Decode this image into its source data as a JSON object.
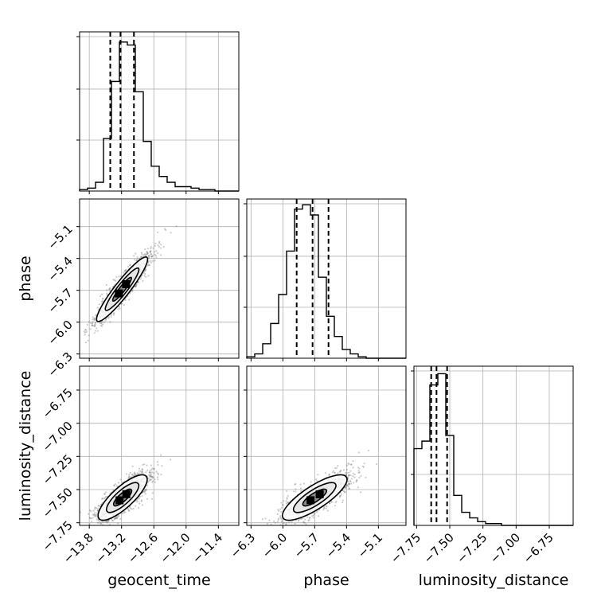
{
  "chart_data": {
    "type": "corner",
    "parameters": [
      "geocent_time",
      "phase",
      "luminosity_distance"
    ],
    "ranges": {
      "geocent_time": [
        -13.98,
        -11.02
      ],
      "phase": [
        -6.34,
        -4.84
      ],
      "luminosity_distance": [
        -7.77,
        -6.57
      ]
    },
    "ticks": {
      "geocent_time": [
        -13.8,
        -13.2,
        -12.6,
        -12.0,
        -11.4
      ],
      "phase": [
        -6.3,
        -6.0,
        -5.7,
        -5.4,
        -5.1
      ],
      "luminosity_distance": [
        -7.75,
        -7.5,
        -7.25,
        -7.0,
        -6.75
      ]
    },
    "tick_labels": {
      "geocent_time": [
        "−13.8",
        "−13.2",
        "−12.6",
        "−12.0",
        "−11.4"
      ],
      "phase": [
        "−6.3",
        "−6.0",
        "−5.7",
        "−5.4",
        "−5.1"
      ],
      "luminosity_distance": [
        "−7.75",
        "−7.50",
        "−7.25",
        "−7.00",
        "−6.75"
      ]
    },
    "axis_labels": {
      "x": [
        "geocent_time",
        "phase",
        "luminosity_distance"
      ],
      "y": [
        "",
        "phase",
        "luminosity_distance"
      ]
    },
    "quantiles": {
      "geocent_time": [
        -13.41,
        -13.22,
        -12.97
      ],
      "phase": [
        -5.87,
        -5.72,
        -5.57
      ],
      "luminosity_distance": [
        -7.64,
        -7.6,
        -7.52
      ]
    },
    "histograms": {
      "geocent_time": {
        "bin_start": -13.98,
        "bin_width": 0.148,
        "counts": [
          1,
          2,
          6,
          36,
          75,
          102,
          100,
          68,
          34,
          17,
          10,
          6,
          3,
          3,
          2,
          1,
          1,
          0,
          0,
          0
        ],
        "ymax": 109
      },
      "phase": {
        "bin_start": -6.34,
        "bin_width": 0.075,
        "counts": [
          1,
          3,
          10,
          24,
          44,
          74,
          103,
          106,
          99,
          56,
          29,
          15,
          6,
          3,
          1,
          0,
          0,
          0,
          0,
          0
        ],
        "ymax": 110
      },
      "luminosity_distance": {
        "bin_start": -7.77,
        "bin_width": 0.06,
        "counts": [
          41,
          45,
          75,
          81,
          48,
          16,
          7,
          4,
          2,
          1,
          1,
          0,
          0,
          0,
          0,
          0,
          0,
          0,
          0,
          0
        ],
        "ymax": 85
      }
    },
    "joint": {
      "phase_vs_geocent_time": {
        "mean": [
          -13.19,
          -5.69
        ],
        "sd": [
          0.25,
          0.16
        ],
        "rho": 0.93
      },
      "luminosity_distance_vs_geocent_time": {
        "mean": [
          -13.18,
          -7.56
        ],
        "sd": [
          0.24,
          0.09
        ],
        "rho": 0.8
      },
      "luminosity_distance_vs_phase": {
        "mean": [
          -5.7,
          -7.56
        ],
        "sd": [
          0.16,
          0.09
        ],
        "rho": 0.8
      }
    },
    "grid": true,
    "colors": {
      "samples": "#4d4d4d",
      "line": "#000000",
      "grid": "#b0b0b0"
    }
  }
}
